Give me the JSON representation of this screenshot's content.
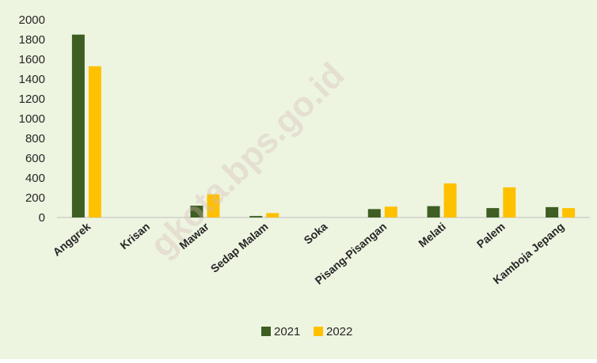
{
  "chart_data": {
    "type": "bar",
    "categories": [
      "Anggrek",
      "Krisan",
      "Mawar",
      "Sedap Malam",
      "Soka",
      "Pisang-Pisangan",
      "Melati",
      "Palem",
      "Kamboja Jepang"
    ],
    "series": [
      {
        "name": "2021",
        "color": "#3e5e23",
        "values": [
          1850,
          0,
          120,
          15,
          0,
          85,
          115,
          95,
          105
        ]
      },
      {
        "name": "2022",
        "color": "#ffc000",
        "values": [
          1530,
          0,
          235,
          45,
          0,
          110,
          345,
          305,
          95
        ]
      }
    ],
    "yticks": [
      0,
      200,
      400,
      600,
      800,
      1000,
      1200,
      1400,
      1600,
      1800,
      2000
    ],
    "ylim": [
      0,
      2000
    ],
    "grid": false,
    "legend_position": "bottom",
    "background": "#edf5e1"
  },
  "watermark": "gkota.bps.go.id"
}
